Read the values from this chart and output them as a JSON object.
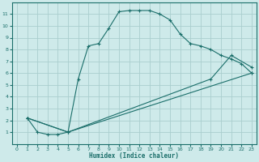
{
  "xlabel": "Humidex (Indice chaleur)",
  "bg_color": "#ceeaea",
  "grid_color": "#aacece",
  "line_color": "#1a6e6a",
  "xlim": [
    -0.5,
    23.5
  ],
  "ylim": [
    0,
    12
  ],
  "xticks": [
    0,
    1,
    2,
    3,
    4,
    5,
    6,
    7,
    8,
    9,
    10,
    11,
    12,
    13,
    14,
    15,
    16,
    17,
    18,
    19,
    20,
    21,
    22,
    23
  ],
  "yticks": [
    1,
    2,
    3,
    4,
    5,
    6,
    7,
    8,
    9,
    10,
    11
  ],
  "curve1_x": [
    1,
    2,
    3,
    4,
    5,
    6,
    7,
    8,
    9,
    10,
    11,
    12,
    13,
    14,
    15,
    16,
    17,
    18,
    19,
    20,
    21,
    22,
    23
  ],
  "curve1_y": [
    2.2,
    1.0,
    0.8,
    0.8,
    1.0,
    5.5,
    8.3,
    8.5,
    9.8,
    11.2,
    11.3,
    11.3,
    11.3,
    11.0,
    10.5,
    9.3,
    8.5,
    8.3,
    8.0,
    7.5,
    7.2,
    6.8,
    6.0
  ],
  "curve2_x": [
    1,
    5,
    23
  ],
  "curve2_y": [
    2.2,
    1.0,
    6.0
  ],
  "curve3_x": [
    1,
    5,
    19,
    21,
    23
  ],
  "curve3_y": [
    2.2,
    1.0,
    5.5,
    7.5,
    6.5
  ]
}
